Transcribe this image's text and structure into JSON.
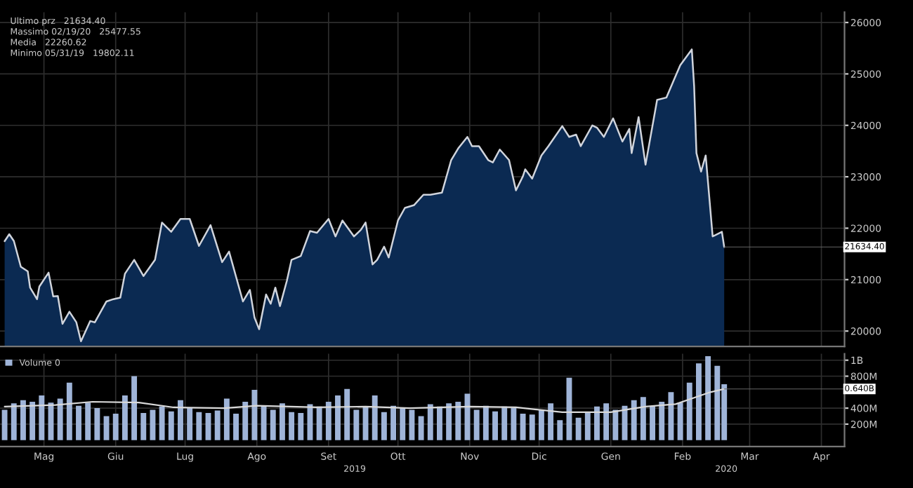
{
  "chart_data": [
    {
      "type": "area",
      "xlim": [
        "2019-04-26",
        "2020-04-25"
      ],
      "ylim": [
        19700,
        26200
      ],
      "yticks": [
        20000,
        21000,
        22000,
        23000,
        24000,
        25000,
        26000
      ],
      "xticks": [
        {
          "value": "2019-05-15",
          "label": null
        },
        {
          "value": "2019-06-15",
          "label": null
        },
        {
          "value": "2019-07-15",
          "label": null
        },
        {
          "value": "2019-08-15",
          "label": null
        },
        {
          "value": "2019-09-15",
          "label": null
        },
        {
          "value": "2019-10-15",
          "label": null
        },
        {
          "value": "2019-11-15",
          "label": null
        },
        {
          "value": "2019-12-15",
          "label": null
        },
        {
          "value": "2020-01-15",
          "label": null
        },
        {
          "value": "2020-02-15",
          "label": null
        },
        {
          "value": "2020-03-15",
          "label": null
        },
        {
          "value": "2020-04-15",
          "label": null
        }
      ],
      "tick_labels": "y",
      "grid": true,
      "annotations": [
        "Ultimo prz   21634.40",
        "Massimo 02/19/20   25477.55",
        "Media   22260.62",
        "Minimo 05/31/19   19802.11",
        {
          "text": "21634.40",
          "x": "2020-03-04",
          "y": 21634.4
        }
      ],
      "series": [
        {
          "color": "#0b2a52",
          "x": [
            "2019-04-28",
            "2019-04-30",
            "2019-05-02",
            "2019-05-05",
            "2019-05-08",
            "2019-05-09",
            "2019-05-12",
            "2019-05-13",
            "2019-05-17",
            "2019-05-19",
            "2019-05-21",
            "2019-05-23",
            "2019-05-26",
            "2019-05-29",
            "2019-05-31",
            "2019-06-04",
            "2019-06-06",
            "2019-06-11",
            "2019-06-14",
            "2019-06-17",
            "2019-06-19",
            "2019-06-23",
            "2019-06-27",
            "2019-07-02",
            "2019-07-05",
            "2019-07-09",
            "2019-07-13",
            "2019-07-17",
            "2019-07-21",
            "2019-07-26",
            "2019-07-31",
            "2019-08-03",
            "2019-08-09",
            "2019-08-12",
            "2019-08-14",
            "2019-08-16",
            "2019-08-19",
            "2019-08-21",
            "2019-08-23",
            "2019-08-25",
            "2019-08-28",
            "2019-08-30",
            "2019-09-03",
            "2019-09-07",
            "2019-09-10",
            "2019-09-15",
            "2019-09-18",
            "2019-09-21",
            "2019-09-26",
            "2019-09-29",
            "2019-10-01",
            "2019-10-04",
            "2019-10-06",
            "2019-10-09",
            "2019-10-11",
            "2019-10-15",
            "2019-10-18",
            "2019-10-22",
            "2019-10-26",
            "2019-10-29",
            "2019-11-03",
            "2019-11-07",
            "2019-11-10",
            "2019-11-14",
            "2019-11-16",
            "2019-11-19",
            "2019-11-23",
            "2019-11-25",
            "2019-11-28",
            "2019-12-02",
            "2019-12-05",
            "2019-12-08",
            "2019-12-09",
            "2019-12-12",
            "2019-12-16",
            "2019-12-19",
            "2019-12-25",
            "2019-12-28",
            "2019-12-31",
            "2020-01-02",
            "2020-01-07",
            "2020-01-09",
            "2020-01-12",
            "2020-01-16",
            "2020-01-20",
            "2020-01-23",
            "2020-01-24",
            "2020-01-27",
            "2020-01-30",
            "2020-02-04",
            "2020-02-08",
            "2020-02-11",
            "2020-02-14",
            "2020-02-19",
            "2020-02-20",
            "2020-02-21",
            "2020-02-23",
            "2020-02-25",
            "2020-02-28",
            "2020-03-03",
            "2020-03-04"
          ],
          "values": [
            21748,
            21883,
            21750,
            21250,
            21160,
            20845,
            20620,
            20865,
            21135,
            20675,
            20680,
            20140,
            20375,
            20170,
            19802,
            20195,
            20170,
            20575,
            20620,
            20650,
            21115,
            21385,
            21070,
            21385,
            22110,
            21930,
            22180,
            22180,
            21655,
            22060,
            21340,
            21545,
            20575,
            20800,
            20260,
            20035,
            20710,
            20530,
            20845,
            20485,
            20980,
            21385,
            21460,
            21945,
            21910,
            22180,
            21840,
            22150,
            21840,
            21970,
            22110,
            21295,
            21385,
            21640,
            21430,
            22150,
            22395,
            22450,
            22650,
            22650,
            22690,
            23325,
            23550,
            23775,
            23595,
            23595,
            23325,
            23280,
            23530,
            23325,
            22735,
            23010,
            23145,
            22965,
            23415,
            23595,
            23985,
            23775,
            23820,
            23595,
            24000,
            23955,
            23775,
            24135,
            23685,
            23930,
            23460,
            24160,
            23235,
            24495,
            24540,
            24855,
            25170,
            25477.55,
            24765,
            23460,
            23100,
            23415,
            21840,
            21930,
            21634.4
          ]
        }
      ]
    },
    {
      "type": "bar",
      "xlim": [
        "2019-04-26",
        "2020-04-25"
      ],
      "ylim": [
        -80000000.0,
        1080000000.0
      ],
      "yticks": [
        {
          "value": 200000000.0,
          "label": "200M"
        },
        {
          "value": 400000000.0,
          "label": "400M"
        },
        {
          "value": 800000000.0,
          "label": "800M"
        },
        {
          "value": 1000000000.0,
          "label": "1B"
        }
      ],
      "xticks": [
        {
          "value": "2019-05-15",
          "label": "Mag"
        },
        {
          "value": "2019-06-15",
          "label": "Giu"
        },
        {
          "value": "2019-07-15",
          "label": "Lug"
        },
        {
          "value": "2019-08-15",
          "label": "Ago"
        },
        {
          "value": "2019-09-15",
          "label": "Set"
        },
        {
          "value": "2019-10-15",
          "label": "Ott"
        },
        {
          "value": "2019-11-15",
          "label": "Nov"
        },
        {
          "value": "2019-12-15",
          "label": "Dic"
        },
        {
          "value": "2020-01-15",
          "label": "Gen"
        },
        {
          "value": "2020-02-15",
          "label": "Feb"
        },
        {
          "value": "2020-03-15",
          "label": "Mar"
        },
        {
          "value": "2020-04-15",
          "label": "Apr"
        }
      ],
      "grid": true,
      "legend": "top left",
      "annotations": [
        "2019",
        "2020",
        {
          "text": "0.640B",
          "x": "2020-03-04",
          "y": 640000000.0
        }
      ],
      "series": [
        {
          "name": "Volume 0",
          "color": "#9fb4d8",
          "x": [
            "2019-04-28",
            "2019-05-02",
            "2019-05-06",
            "2019-05-10",
            "2019-05-14",
            "2019-05-18",
            "2019-05-22",
            "2019-05-26",
            "2019-05-30",
            "2019-06-03",
            "2019-06-07",
            "2019-06-11",
            "2019-06-15",
            "2019-06-19",
            "2019-06-23",
            "2019-06-27",
            "2019-07-01",
            "2019-07-05",
            "2019-07-09",
            "2019-07-13",
            "2019-07-17",
            "2019-07-21",
            "2019-07-25",
            "2019-07-29",
            "2019-08-02",
            "2019-08-06",
            "2019-08-10",
            "2019-08-14",
            "2019-08-18",
            "2019-08-22",
            "2019-08-26",
            "2019-08-30",
            "2019-09-03",
            "2019-09-07",
            "2019-09-11",
            "2019-09-15",
            "2019-09-19",
            "2019-09-23",
            "2019-09-27",
            "2019-10-01",
            "2019-10-05",
            "2019-10-09",
            "2019-10-13",
            "2019-10-17",
            "2019-10-21",
            "2019-10-25",
            "2019-10-29",
            "2019-11-02",
            "2019-11-06",
            "2019-11-10",
            "2019-11-14",
            "2019-11-18",
            "2019-11-22",
            "2019-11-26",
            "2019-11-30",
            "2019-12-04",
            "2019-12-08",
            "2019-12-12",
            "2019-12-16",
            "2019-12-20",
            "2019-12-24",
            "2019-12-28",
            "2020-01-01",
            "2020-01-05",
            "2020-01-09",
            "2020-01-13",
            "2020-01-17",
            "2020-01-21",
            "2020-01-25",
            "2020-01-29",
            "2020-02-02",
            "2020-02-06",
            "2020-02-10",
            "2020-02-14",
            "2020-02-18",
            "2020-02-22",
            "2020-02-26",
            "2020-03-01",
            "2020-03-04"
          ],
          "values": [
            380000000.0,
            460000000.0,
            500000000.0,
            480000000.0,
            560000000.0,
            470000000.0,
            520000000.0,
            720000000.0,
            430000000.0,
            470000000.0,
            400000000.0,
            300000000.0,
            330000000.0,
            560000000.0,
            800000000.0,
            340000000.0,
            380000000.0,
            420000000.0,
            360000000.0,
            500000000.0,
            400000000.0,
            350000000.0,
            340000000.0,
            370000000.0,
            520000000.0,
            330000000.0,
            480000000.0,
            630000000.0,
            430000000.0,
            380000000.0,
            460000000.0,
            350000000.0,
            340000000.0,
            450000000.0,
            420000000.0,
            480000000.0,
            560000000.0,
            640000000.0,
            380000000.0,
            420000000.0,
            560000000.0,
            350000000.0,
            430000000.0,
            400000000.0,
            380000000.0,
            300000000.0,
            450000000.0,
            420000000.0,
            460000000.0,
            480000000.0,
            580000000.0,
            380000000.0,
            430000000.0,
            360000000.0,
            420000000.0,
            400000000.0,
            330000000.0,
            320000000.0,
            380000000.0,
            460000000.0,
            250000000.0,
            780000000.0,
            280000000.0,
            350000000.0,
            420000000.0,
            460000000.0,
            380000000.0,
            430000000.0,
            500000000.0,
            540000000.0,
            420000000.0,
            480000000.0,
            600000000.0,
            470000000.0,
            720000000.0,
            960000000.0,
            1050000000.0,
            930000000.0,
            700000000.0
          ]
        },
        {
          "type": "line",
          "color": "#d9d9d9",
          "x": [
            "2019-04-28",
            "2019-05-20",
            "2019-06-05",
            "2019-06-25",
            "2019-07-10",
            "2019-08-01",
            "2019-08-15",
            "2019-09-10",
            "2019-10-01",
            "2019-10-20",
            "2019-11-15",
            "2019-12-05",
            "2019-12-25",
            "2020-01-15",
            "2020-01-30",
            "2020-02-12",
            "2020-02-20",
            "2020-02-27",
            "2020-03-04"
          ],
          "values": [
            420000000.0,
            440000000.0,
            480000000.0,
            470000000.0,
            410000000.0,
            400000000.0,
            430000000.0,
            410000000.0,
            420000000.0,
            400000000.0,
            420000000.0,
            410000000.0,
            350000000.0,
            350000000.0,
            420000000.0,
            450000000.0,
            530000000.0,
            600000000.0,
            640000000.0
          ]
        }
      ]
    }
  ]
}
